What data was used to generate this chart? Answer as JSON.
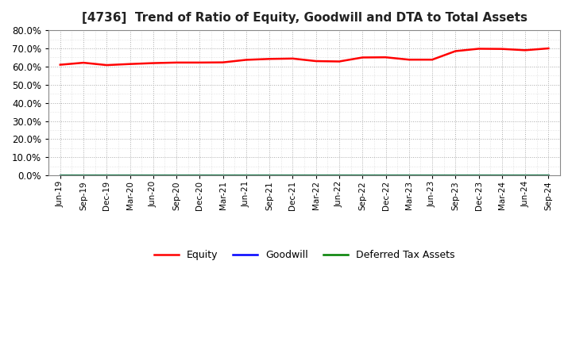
{
  "title": "[4736]  Trend of Ratio of Equity, Goodwill and DTA to Total Assets",
  "x_labels": [
    "Jun-19",
    "Sep-19",
    "Dec-19",
    "Mar-20",
    "Jun-20",
    "Sep-20",
    "Dec-20",
    "Mar-21",
    "Jun-21",
    "Sep-21",
    "Dec-21",
    "Mar-22",
    "Jun-22",
    "Sep-22",
    "Dec-22",
    "Mar-23",
    "Jun-23",
    "Sep-23",
    "Dec-23",
    "Mar-24",
    "Jun-24",
    "Sep-24"
  ],
  "equity": [
    0.61,
    0.621,
    0.608,
    0.614,
    0.619,
    0.622,
    0.622,
    0.623,
    0.637,
    0.642,
    0.644,
    0.63,
    0.628,
    0.65,
    0.651,
    0.638,
    0.638,
    0.685,
    0.698,
    0.697,
    0.69,
    0.7
  ],
  "goodwill": [
    0.0,
    0.0,
    0.0,
    0.0,
    0.0,
    0.0,
    0.0,
    0.0,
    0.0,
    0.0,
    0.0,
    0.0,
    0.0,
    0.0,
    0.0,
    0.0,
    0.0,
    0.0,
    0.0,
    0.0,
    0.0,
    0.0
  ],
  "dta": [
    0.0,
    0.0,
    0.0,
    0.0,
    0.0,
    0.0,
    0.0,
    0.0,
    0.0,
    0.0,
    0.0,
    0.0,
    0.0,
    0.0,
    0.0,
    0.0,
    0.0,
    0.0,
    0.0,
    0.0,
    0.0,
    0.0
  ],
  "equity_color": "#ff0000",
  "goodwill_color": "#0000ff",
  "dta_color": "#008000",
  "ylim": [
    0.0,
    0.8
  ],
  "yticks": [
    0.0,
    0.1,
    0.2,
    0.3,
    0.4,
    0.5,
    0.6,
    0.7,
    0.8
  ],
  "background_color": "#ffffff",
  "grid_color": "#aaaaaa",
  "legend_labels": [
    "Equity",
    "Goodwill",
    "Deferred Tax Assets"
  ]
}
